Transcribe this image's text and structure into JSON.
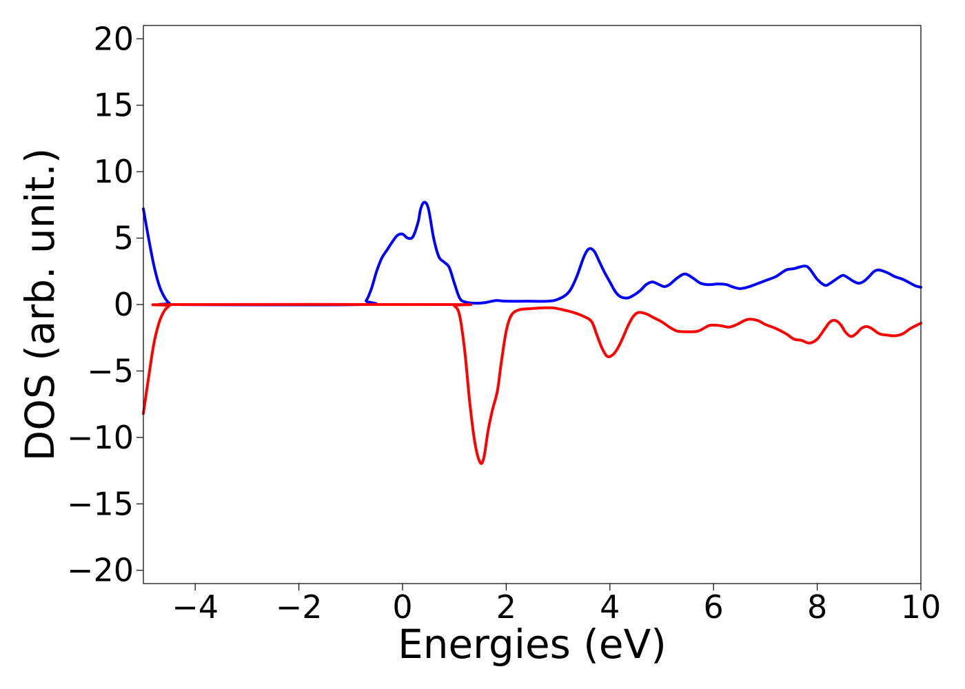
{
  "chart_data": {
    "type": "line",
    "xlabel": "Energies (eV)",
    "ylabel": "DOS (arb. unit.)",
    "xlim": [
      -5,
      10
    ],
    "ylim": [
      -21,
      21
    ],
    "x_ticks": [
      -4,
      -2,
      0,
      2,
      4,
      6,
      8,
      10
    ],
    "x_tick_labels": [
      "−4",
      "−2",
      "0",
      "2",
      "4",
      "6",
      "8",
      "10"
    ],
    "y_ticks": [
      20,
      15,
      10,
      5,
      0,
      -5,
      -10,
      -15,
      -20
    ],
    "y_tick_labels": [
      "20",
      "15",
      "10",
      "5",
      "0",
      "−5",
      "−10",
      "−15",
      "−20"
    ],
    "grid": false,
    "series": [
      {
        "color": "#0000ff",
        "points": [
          [
            -5.0,
            7.2
          ],
          [
            -4.9,
            5.0
          ],
          [
            -4.8,
            3.0
          ],
          [
            -4.7,
            1.5
          ],
          [
            -4.6,
            0.6
          ],
          [
            -4.5,
            0.1
          ],
          [
            -4.4,
            0.0
          ],
          [
            -0.8,
            0.0
          ],
          [
            -0.7,
            0.3
          ],
          [
            -0.6,
            1.2
          ],
          [
            -0.5,
            2.5
          ],
          [
            -0.4,
            3.5
          ],
          [
            -0.3,
            4.1
          ],
          [
            -0.2,
            4.7
          ],
          [
            -0.1,
            5.2
          ],
          [
            0.0,
            5.3
          ],
          [
            0.1,
            5.0
          ],
          [
            0.2,
            5.1
          ],
          [
            0.3,
            6.2
          ],
          [
            0.35,
            7.2
          ],
          [
            0.42,
            7.7
          ],
          [
            0.5,
            7.2
          ],
          [
            0.6,
            5.0
          ],
          [
            0.7,
            3.6
          ],
          [
            0.8,
            3.2
          ],
          [
            0.9,
            2.8
          ],
          [
            1.0,
            1.6
          ],
          [
            1.1,
            0.5
          ],
          [
            1.2,
            0.2
          ],
          [
            1.4,
            0.1
          ],
          [
            1.6,
            0.15
          ],
          [
            1.8,
            0.3
          ],
          [
            2.0,
            0.25
          ],
          [
            2.4,
            0.25
          ],
          [
            2.8,
            0.25
          ],
          [
            3.0,
            0.4
          ],
          [
            3.2,
            0.9
          ],
          [
            3.35,
            2.0
          ],
          [
            3.5,
            3.6
          ],
          [
            3.6,
            4.2
          ],
          [
            3.7,
            4.0
          ],
          [
            3.8,
            3.2
          ],
          [
            3.9,
            2.4
          ],
          [
            4.0,
            1.7
          ],
          [
            4.1,
            1.0
          ],
          [
            4.2,
            0.6
          ],
          [
            4.35,
            0.5
          ],
          [
            4.5,
            0.8
          ],
          [
            4.6,
            1.1
          ],
          [
            4.7,
            1.5
          ],
          [
            4.82,
            1.7
          ],
          [
            4.95,
            1.5
          ],
          [
            5.05,
            1.35
          ],
          [
            5.15,
            1.5
          ],
          [
            5.3,
            2.0
          ],
          [
            5.45,
            2.3
          ],
          [
            5.6,
            2.0
          ],
          [
            5.75,
            1.6
          ],
          [
            5.9,
            1.5
          ],
          [
            6.1,
            1.55
          ],
          [
            6.25,
            1.5
          ],
          [
            6.35,
            1.35
          ],
          [
            6.5,
            1.2
          ],
          [
            6.65,
            1.3
          ],
          [
            6.8,
            1.5
          ],
          [
            7.0,
            1.8
          ],
          [
            7.2,
            2.1
          ],
          [
            7.4,
            2.6
          ],
          [
            7.55,
            2.7
          ],
          [
            7.75,
            2.9
          ],
          [
            7.85,
            2.7
          ],
          [
            8.0,
            1.9
          ],
          [
            8.15,
            1.45
          ],
          [
            8.25,
            1.6
          ],
          [
            8.4,
            2.0
          ],
          [
            8.5,
            2.2
          ],
          [
            8.6,
            2.0
          ],
          [
            8.7,
            1.75
          ],
          [
            8.8,
            1.6
          ],
          [
            8.9,
            1.75
          ],
          [
            9.0,
            2.1
          ],
          [
            9.1,
            2.5
          ],
          [
            9.2,
            2.6
          ],
          [
            9.35,
            2.4
          ],
          [
            9.5,
            2.1
          ],
          [
            9.65,
            1.9
          ],
          [
            9.8,
            1.6
          ],
          [
            9.9,
            1.4
          ],
          [
            10.0,
            1.3
          ]
        ]
      },
      {
        "color": "#ff0000",
        "points": [
          [
            -5.0,
            -8.2
          ],
          [
            -4.9,
            -5.5
          ],
          [
            -4.8,
            -3.0
          ],
          [
            -4.7,
            -1.4
          ],
          [
            -4.6,
            -0.5
          ],
          [
            -4.5,
            -0.1
          ],
          [
            -4.4,
            0.0
          ],
          [
            0.9,
            0.0
          ],
          [
            1.0,
            -0.1
          ],
          [
            1.1,
            -0.8
          ],
          [
            1.2,
            -3.5
          ],
          [
            1.3,
            -7.5
          ],
          [
            1.4,
            -10.5
          ],
          [
            1.5,
            -11.9
          ],
          [
            1.57,
            -11.5
          ],
          [
            1.65,
            -9.5
          ],
          [
            1.73,
            -8.0
          ],
          [
            1.83,
            -6.5
          ],
          [
            1.9,
            -4.5
          ],
          [
            2.0,
            -2.0
          ],
          [
            2.1,
            -0.8
          ],
          [
            2.25,
            -0.4
          ],
          [
            2.5,
            -0.3
          ],
          [
            2.7,
            -0.25
          ],
          [
            2.9,
            -0.25
          ],
          [
            3.1,
            -0.4
          ],
          [
            3.3,
            -0.6
          ],
          [
            3.5,
            -0.9
          ],
          [
            3.65,
            -1.3
          ],
          [
            3.75,
            -2.3
          ],
          [
            3.85,
            -3.3
          ],
          [
            3.95,
            -3.9
          ],
          [
            4.05,
            -3.8
          ],
          [
            4.15,
            -3.3
          ],
          [
            4.25,
            -2.5
          ],
          [
            4.35,
            -1.6
          ],
          [
            4.45,
            -0.9
          ],
          [
            4.55,
            -0.6
          ],
          [
            4.7,
            -0.7
          ],
          [
            4.85,
            -1.0
          ],
          [
            5.0,
            -1.3
          ],
          [
            5.15,
            -1.7
          ],
          [
            5.3,
            -2.0
          ],
          [
            5.5,
            -2.05
          ],
          [
            5.7,
            -2.0
          ],
          [
            5.9,
            -1.6
          ],
          [
            6.0,
            -1.55
          ],
          [
            6.15,
            -1.6
          ],
          [
            6.3,
            -1.7
          ],
          [
            6.45,
            -1.5
          ],
          [
            6.6,
            -1.2
          ],
          [
            6.7,
            -1.1
          ],
          [
            6.85,
            -1.2
          ],
          [
            7.0,
            -1.5
          ],
          [
            7.2,
            -1.8
          ],
          [
            7.4,
            -2.2
          ],
          [
            7.55,
            -2.6
          ],
          [
            7.7,
            -2.7
          ],
          [
            7.85,
            -2.9
          ],
          [
            8.0,
            -2.6
          ],
          [
            8.15,
            -1.8
          ],
          [
            8.25,
            -1.3
          ],
          [
            8.35,
            -1.2
          ],
          [
            8.45,
            -1.5
          ],
          [
            8.55,
            -2.1
          ],
          [
            8.65,
            -2.4
          ],
          [
            8.75,
            -2.2
          ],
          [
            8.85,
            -1.8
          ],
          [
            8.95,
            -1.65
          ],
          [
            9.05,
            -1.8
          ],
          [
            9.2,
            -2.2
          ],
          [
            9.35,
            -2.3
          ],
          [
            9.5,
            -2.35
          ],
          [
            9.65,
            -2.2
          ],
          [
            9.8,
            -1.8
          ],
          [
            10.0,
            -1.4
          ]
        ]
      }
    ]
  }
}
